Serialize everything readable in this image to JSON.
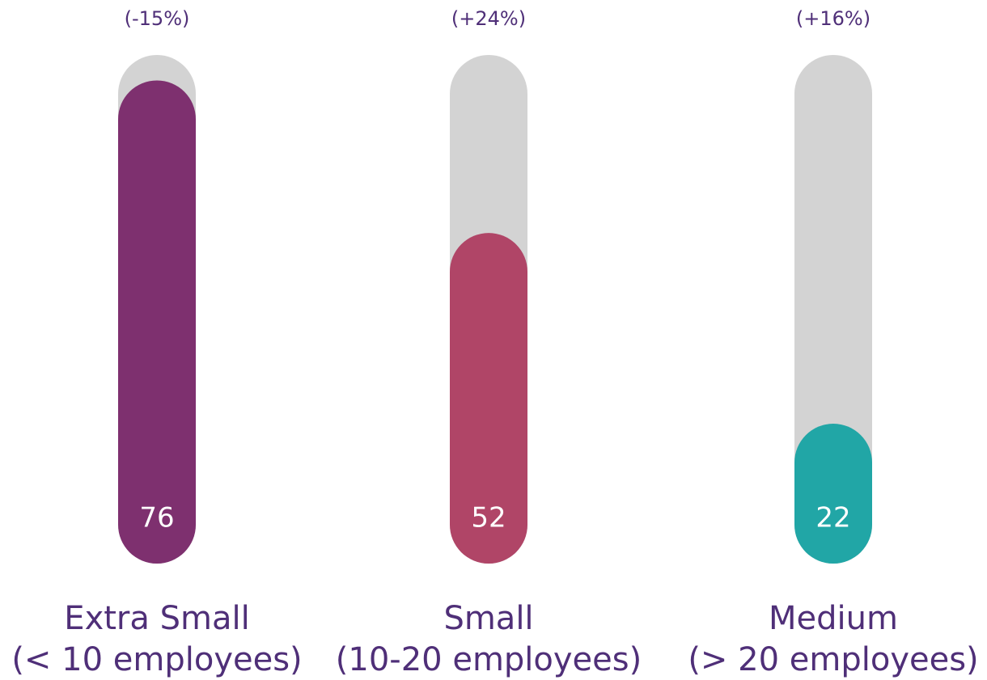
{
  "chart_data": {
    "type": "bar",
    "categories": [
      [
        "Extra Small",
        "(< 10 employees)"
      ],
      [
        "Small",
        "(10-20 employees)"
      ],
      [
        "Medium",
        "(> 20 employees)"
      ]
    ],
    "values": [
      76,
      52,
      22
    ],
    "annotations": [
      "(-15%)",
      "(+24%)",
      "(+16%)"
    ],
    "colors": [
      "#7e306f",
      "#b04567",
      "#21a6a6"
    ],
    "track_color": "#d3d3d3",
    "ylim": [
      0,
      80
    ]
  }
}
